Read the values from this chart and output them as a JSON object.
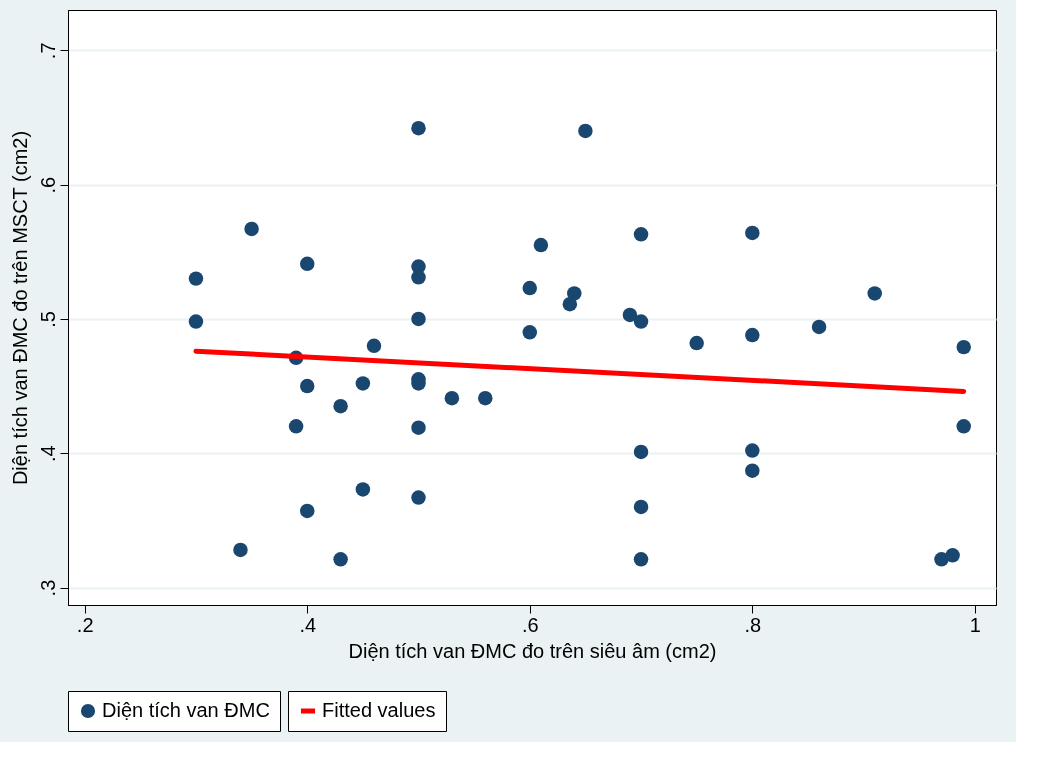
{
  "chart_data": {
    "type": "scatter",
    "xlabel": "Diện tích van ĐMC đo trên siêu âm (cm2)",
    "ylabel": "Diện tích van ĐMC đo trên MSCT (cm2)",
    "xlim": [
      0.185,
      1.019
    ],
    "ylim": [
      0.287,
      0.73
    ],
    "xticks": [
      {
        "value": 0.2,
        "label": ".2"
      },
      {
        "value": 0.4,
        "label": ".4"
      },
      {
        "value": 0.6,
        "label": ".6"
      },
      {
        "value": 0.8,
        "label": ".8"
      },
      1
    ],
    "yticks": [
      {
        "value": 0.3,
        "label": ".3"
      },
      {
        "value": 0.4,
        "label": ".4"
      },
      {
        "value": 0.5,
        "label": ".5"
      },
      {
        "value": 0.6,
        "label": ".6"
      },
      {
        "value": 0.7,
        "label": ".7"
      }
    ],
    "grid": "y",
    "legend": "bottom",
    "series": [
      {
        "name": "Diện tích van ĐMC",
        "color": "#1a476f",
        "marker": "circle",
        "x": [
          0.3,
          0.3,
          0.35,
          0.34,
          0.4,
          0.39,
          0.4,
          0.39,
          0.4,
          0.43,
          0.43,
          0.45,
          0.45,
          0.46,
          0.5,
          0.5,
          0.5,
          0.5,
          0.5,
          0.5,
          0.5,
          0.5,
          0.53,
          0.56,
          0.6,
          0.6,
          0.61,
          0.65,
          0.64,
          0.636,
          0.69,
          0.7,
          0.7,
          0.7,
          0.7,
          0.7,
          0.75,
          0.8,
          0.8,
          0.8,
          0.8,
          0.86,
          0.91,
          0.99,
          0.99,
          0.97,
          0.98
        ],
        "values": [
          0.53,
          0.498,
          0.567,
          0.328,
          0.541,
          0.471,
          0.45,
          0.42,
          0.357,
          0.321,
          0.435,
          0.452,
          0.373,
          0.48,
          0.642,
          0.539,
          0.531,
          0.5,
          0.455,
          0.452,
          0.419,
          0.367,
          0.441,
          0.441,
          0.523,
          0.49,
          0.555,
          0.64,
          0.519,
          0.511,
          0.503,
          0.498,
          0.563,
          0.401,
          0.36,
          0.321,
          0.482,
          0.564,
          0.488,
          0.402,
          0.387,
          0.494,
          0.519,
          0.479,
          0.42,
          0.321,
          0.324
        ]
      },
      {
        "name": "Fitted values",
        "type": "line",
        "color": "#ff0000",
        "line_style": "solid",
        "marker": "none",
        "x": [
          0.3,
          0.99
        ],
        "values": [
          0.476,
          0.446
        ]
      }
    ]
  }
}
